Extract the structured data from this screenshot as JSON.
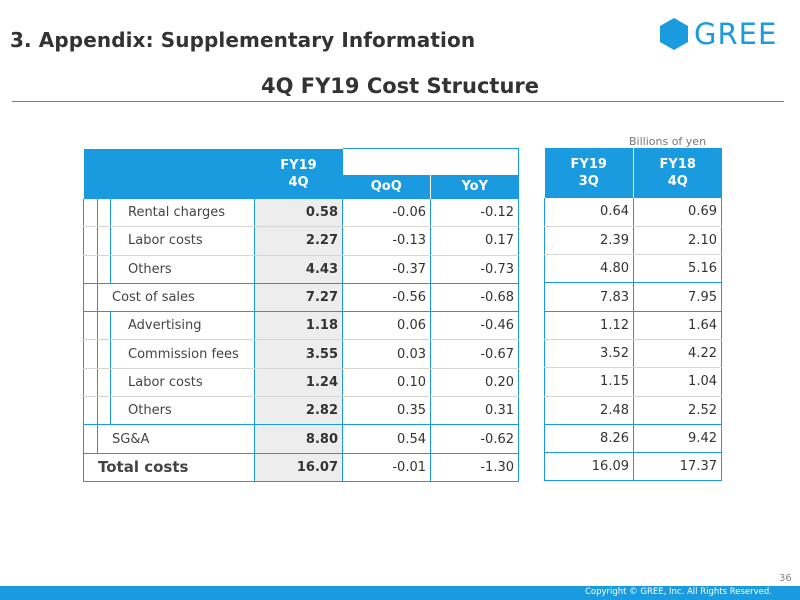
{
  "header": {
    "section_title": "3. Appendix: Supplementary Information",
    "logo_text": "GREE"
  },
  "slide_title": "4Q FY19 Cost Structure",
  "unit_note": "Billions of yen",
  "columns": {
    "current_line1": "FY19",
    "current_line2": "4Q",
    "qoq": "QoQ",
    "yoy": "YoY",
    "prev_q_line1": "FY19",
    "prev_q_line2": "3Q",
    "prev_y_line1": "FY18",
    "prev_y_line2": "4Q"
  },
  "rows": [
    {
      "label": "Rental charges",
      "cur": "0.58",
      "qoq": "-0.06",
      "yoy": "-0.12",
      "prev_q": "0.64",
      "prev_y": "0.69"
    },
    {
      "label": "Labor costs",
      "cur": "2.27",
      "qoq": "-0.13",
      "yoy": "0.17",
      "prev_q": "2.39",
      "prev_y": "2.10"
    },
    {
      "label": "Others",
      "cur": "4.43",
      "qoq": "-0.37",
      "yoy": "-0.73",
      "prev_q": "4.80",
      "prev_y": "5.16"
    },
    {
      "label": "Cost of sales",
      "cur": "7.27",
      "qoq": "-0.56",
      "yoy": "-0.68",
      "prev_q": "7.83",
      "prev_y": "7.95"
    },
    {
      "label": "Advertising",
      "cur": "1.18",
      "qoq": "0.06",
      "yoy": "-0.46",
      "prev_q": "1.12",
      "prev_y": "1.64"
    },
    {
      "label": "Commission fees",
      "cur": "3.55",
      "qoq": "0.03",
      "yoy": "-0.67",
      "prev_q": "3.52",
      "prev_y": "4.22"
    },
    {
      "label": "Labor costs",
      "cur": "1.24",
      "qoq": "0.10",
      "yoy": "0.20",
      "prev_q": "1.15",
      "prev_y": "1.04"
    },
    {
      "label": "Others",
      "cur": "2.82",
      "qoq": "0.35",
      "yoy": "0.31",
      "prev_q": "2.48",
      "prev_y": "2.52"
    },
    {
      "label": "SG&A",
      "cur": "8.80",
      "qoq": "0.54",
      "yoy": "-0.62",
      "prev_q": "8.26",
      "prev_y": "9.42"
    },
    {
      "label": "Total costs",
      "cur": "16.07",
      "qoq": "-0.01",
      "yoy": "-1.30",
      "prev_q": "16.09",
      "prev_y": "17.37"
    }
  ],
  "footer": {
    "page_number": "36",
    "copyright": "Copyright © GREE, Inc. All Rights Reserved."
  },
  "colors": {
    "accent": "#1a9be0",
    "highlight_col": "#ededed"
  }
}
